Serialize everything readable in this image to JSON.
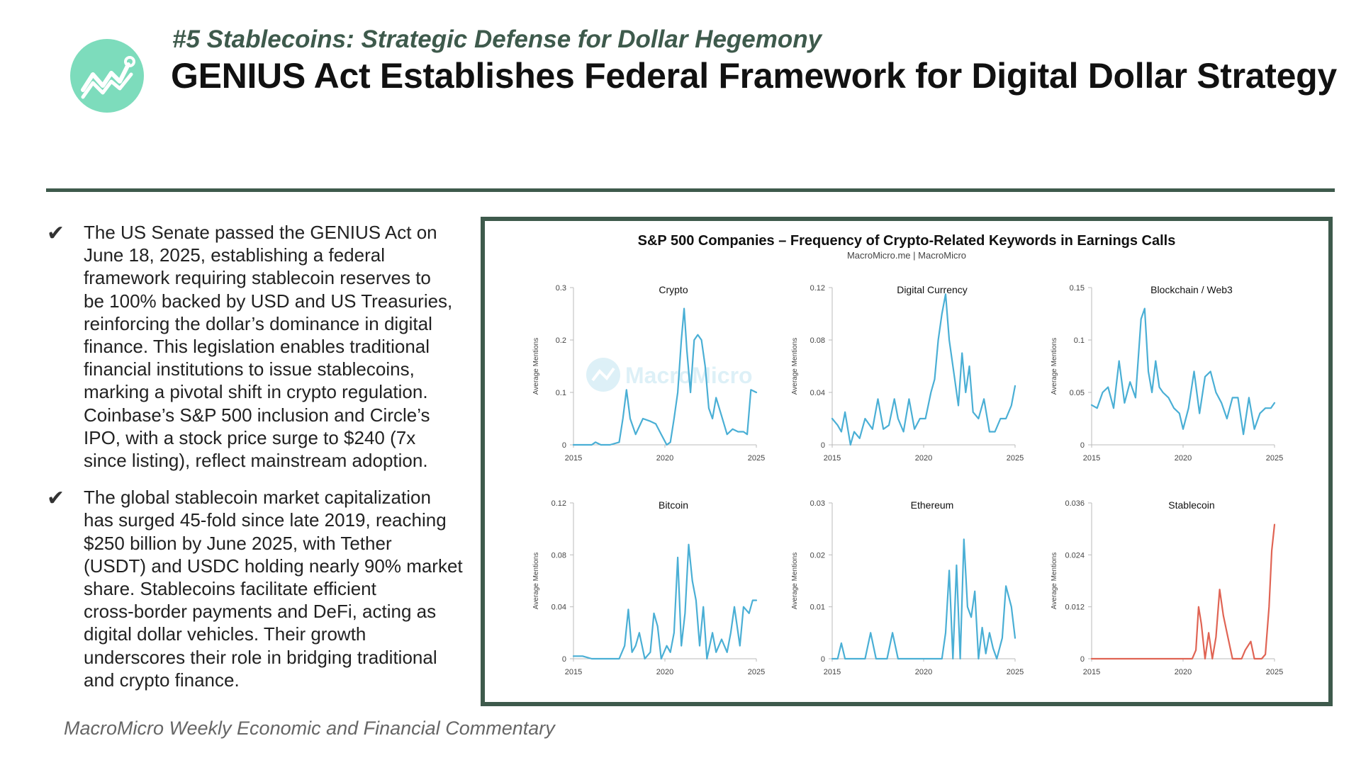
{
  "header": {
    "subtitle": "#5 Stablecoins: Strategic Defense for Dollar Hegemony",
    "title": "GENIUS Act Establishes Federal Framework for Digital Dollar Strategy",
    "logo_icon": "trend-chart-icon",
    "accent_color": "#7ddcbc",
    "rule_color": "#3e5a4c"
  },
  "bullets": [
    {
      "icon": "checkmark-icon",
      "lines": [
        "The US Senate passed the GENIUS Act on",
        "June 18, 2025, establishing a federal",
        "framework requiring stablecoin reserves to",
        "be 100% backed by USD and US Treasuries,",
        "reinforcing the dollar’s dominance in digital",
        "finance. This legislation enables traditional",
        "financial institutions to issue stablecoins,",
        "marking a pivotal shift in crypto regulation.",
        "Coinbase’s S&P 500 inclusion and Circle’s",
        "IPO, with a stock price surge to $240 (7x",
        "since listing), reflect mainstream adoption."
      ]
    },
    {
      "icon": "checkmark-icon",
      "lines": [
        "The global stablecoin market capitalization",
        "has surged 45-fold since late 2019, reaching",
        "$250 billion by June 2025, with Tether",
        "(USDT) and USDC holding nearly 90% market",
        "share. Stablecoins facilitate efficient",
        "cross-border payments and DeFi, acting as",
        "digital dollar vehicles. Their growth",
        "underscores their role in bridging traditional",
        "and crypto finance."
      ]
    }
  ],
  "footer": {
    "text": "MacroMicro Weekly Economic and Financial Commentary"
  },
  "chart_meta": {
    "title": "S&P 500 Companies – Frequency of Crypto-Related Keywords in Earnings Calls",
    "source": "MacroMicro.me | MacroMicro",
    "watermark": "MacroMicro",
    "watermark_icon": "macromicro-logo-icon"
  },
  "chart_data": [
    {
      "type": "line",
      "title": "Crypto",
      "ylabel": "Average Mentions",
      "xlim": [
        2015,
        2025
      ],
      "ylim": [
        0,
        0.3
      ],
      "y_ticks": [
        0,
        0.1,
        0.2,
        0.3
      ],
      "y_tick_labels": [
        "0",
        "0.1",
        "0.2",
        "0.3"
      ],
      "x_ticks": [
        2015,
        2020,
        2025
      ],
      "color": "#4aafd5",
      "x": [
        2015.0,
        2015.5,
        2016.0,
        2016.2,
        2016.5,
        2017.0,
        2017.5,
        2017.7,
        2017.9,
        2018.1,
        2018.4,
        2018.8,
        2019.2,
        2019.5,
        2019.8,
        2020.1,
        2020.3,
        2020.5,
        2020.7,
        2020.9,
        2021.05,
        2021.2,
        2021.4,
        2021.6,
        2021.8,
        2022.0,
        2022.2,
        2022.4,
        2022.6,
        2022.8,
        2023.1,
        2023.4,
        2023.7,
        2024.0,
        2024.3,
        2024.5,
        2024.7,
        2025.0
      ],
      "y": [
        0,
        0,
        0,
        0.005,
        0,
        0,
        0.005,
        0.05,
        0.105,
        0.05,
        0.02,
        0.05,
        0.045,
        0.04,
        0.02,
        0,
        0.005,
        0.05,
        0.1,
        0.2,
        0.26,
        0.18,
        0.1,
        0.2,
        0.21,
        0.2,
        0.15,
        0.07,
        0.05,
        0.09,
        0.055,
        0.02,
        0.03,
        0.025,
        0.025,
        0.02,
        0.105,
        0.1
      ]
    },
    {
      "type": "line",
      "title": "Digital Currency",
      "ylabel": "Average Mentions",
      "xlim": [
        2015,
        2025
      ],
      "ylim": [
        0,
        0.12
      ],
      "y_ticks": [
        0,
        0.04,
        0.08,
        0.12
      ],
      "y_tick_labels": [
        "0",
        "0.04",
        "0.08",
        "0.12"
      ],
      "x_ticks": [
        2015,
        2020,
        2025
      ],
      "color": "#4aafd5",
      "x": [
        2015.0,
        2015.3,
        2015.5,
        2015.7,
        2016.0,
        2016.2,
        2016.5,
        2016.8,
        2017.2,
        2017.5,
        2017.8,
        2018.1,
        2018.4,
        2018.6,
        2018.9,
        2019.2,
        2019.5,
        2019.8,
        2020.1,
        2020.4,
        2020.6,
        2020.8,
        2021.0,
        2021.2,
        2021.4,
        2021.7,
        2021.9,
        2022.1,
        2022.3,
        2022.5,
        2022.7,
        2023.0,
        2023.3,
        2023.6,
        2023.9,
        2024.2,
        2024.5,
        2024.8,
        2025.0
      ],
      "y": [
        0.02,
        0.015,
        0.01,
        0.025,
        0.0,
        0.01,
        0.005,
        0.02,
        0.012,
        0.035,
        0.012,
        0.015,
        0.035,
        0.02,
        0.01,
        0.035,
        0.012,
        0.02,
        0.02,
        0.04,
        0.05,
        0.08,
        0.1,
        0.115,
        0.08,
        0.05,
        0.03,
        0.07,
        0.04,
        0.06,
        0.025,
        0.02,
        0.035,
        0.01,
        0.01,
        0.02,
        0.02,
        0.03,
        0.045
      ]
    },
    {
      "type": "line",
      "title": "Blockchain / Web3",
      "ylabel": "Average Mentions",
      "xlim": [
        2015,
        2025
      ],
      "ylim": [
        0,
        0.15
      ],
      "y_ticks": [
        0,
        0.05,
        0.1,
        0.15
      ],
      "y_tick_labels": [
        "0",
        "0.05",
        "0.1",
        "0.15"
      ],
      "x_ticks": [
        2015,
        2020,
        2025
      ],
      "color": "#4aafd5",
      "x": [
        2015.0,
        2015.3,
        2015.6,
        2015.9,
        2016.2,
        2016.5,
        2016.8,
        2017.1,
        2017.4,
        2017.7,
        2017.9,
        2018.1,
        2018.3,
        2018.5,
        2018.7,
        2018.9,
        2019.2,
        2019.5,
        2019.8,
        2020.0,
        2020.3,
        2020.6,
        2020.9,
        2021.2,
        2021.5,
        2021.8,
        2022.1,
        2022.4,
        2022.7,
        2023.0,
        2023.3,
        2023.6,
        2023.9,
        2024.2,
        2024.5,
        2024.8,
        2025.0
      ],
      "y": [
        0.038,
        0.035,
        0.05,
        0.055,
        0.035,
        0.08,
        0.04,
        0.06,
        0.045,
        0.12,
        0.13,
        0.07,
        0.05,
        0.08,
        0.055,
        0.05,
        0.045,
        0.035,
        0.03,
        0.015,
        0.035,
        0.07,
        0.03,
        0.065,
        0.07,
        0.05,
        0.04,
        0.025,
        0.045,
        0.045,
        0.01,
        0.045,
        0.015,
        0.03,
        0.035,
        0.035,
        0.04
      ]
    },
    {
      "type": "line",
      "title": "Bitcoin",
      "ylabel": "Average Mentions",
      "xlim": [
        2015,
        2025
      ],
      "ylim": [
        0,
        0.12
      ],
      "y_ticks": [
        0,
        0.04,
        0.08,
        0.12
      ],
      "y_tick_labels": [
        "0",
        "0.04",
        "0.08",
        "0.12"
      ],
      "x_ticks": [
        2015,
        2020,
        2025
      ],
      "color": "#4aafd5",
      "x": [
        2015.0,
        2015.5,
        2016.0,
        2016.5,
        2017.0,
        2017.5,
        2017.8,
        2018.0,
        2018.2,
        2018.4,
        2018.6,
        2018.9,
        2019.2,
        2019.4,
        2019.6,
        2019.8,
        2020.1,
        2020.3,
        2020.5,
        2020.7,
        2020.9,
        2021.1,
        2021.3,
        2021.5,
        2021.7,
        2021.9,
        2022.1,
        2022.3,
        2022.6,
        2022.8,
        2023.1,
        2023.4,
        2023.6,
        2023.8,
        2024.1,
        2024.3,
        2024.6,
        2024.8,
        2025.0
      ],
      "y": [
        0.002,
        0.002,
        0.0,
        0.0,
        0.0,
        0.0,
        0.01,
        0.038,
        0.005,
        0.01,
        0.02,
        0.0,
        0.005,
        0.035,
        0.025,
        0.0,
        0.01,
        0.005,
        0.02,
        0.078,
        0.01,
        0.035,
        0.088,
        0.06,
        0.045,
        0.01,
        0.04,
        0.0,
        0.02,
        0.005,
        0.015,
        0.005,
        0.02,
        0.04,
        0.01,
        0.04,
        0.035,
        0.045,
        0.045
      ]
    },
    {
      "type": "line",
      "title": "Ethereum",
      "ylabel": "Average Mentions",
      "xlim": [
        2015,
        2025
      ],
      "ylim": [
        0,
        0.03
      ],
      "y_ticks": [
        0,
        0.01,
        0.02,
        0.03
      ],
      "y_tick_labels": [
        "0",
        "0.01",
        "0.02",
        "0.03"
      ],
      "x_ticks": [
        2015,
        2020,
        2025
      ],
      "color": "#4aafd5",
      "x": [
        2015.0,
        2015.3,
        2015.5,
        2015.7,
        2016.0,
        2016.5,
        2016.8,
        2017.1,
        2017.4,
        2017.7,
        2018.0,
        2018.3,
        2018.6,
        2018.9,
        2019.3,
        2019.6,
        2019.9,
        2020.2,
        2020.5,
        2020.8,
        2021.0,
        2021.2,
        2021.4,
        2021.6,
        2021.8,
        2022.0,
        2022.2,
        2022.4,
        2022.6,
        2022.8,
        2023.0,
        2023.2,
        2023.4,
        2023.6,
        2023.8,
        2024.0,
        2024.3,
        2024.5,
        2024.8,
        2025.0
      ],
      "y": [
        0.0,
        0.0,
        0.003,
        0.0,
        0.0,
        0.0,
        0.0,
        0.005,
        0.0,
        0.0,
        0.0,
        0.005,
        0.0,
        0.0,
        0.0,
        0.0,
        0.0,
        0.0,
        0.0,
        0.0,
        0.0,
        0.005,
        0.017,
        0.0,
        0.018,
        0.0,
        0.023,
        0.01,
        0.008,
        0.013,
        0.0,
        0.006,
        0.001,
        0.005,
        0.002,
        0.0,
        0.004,
        0.014,
        0.01,
        0.004
      ]
    },
    {
      "type": "line",
      "title": "Stablecoin",
      "ylabel": "Average Mentions",
      "xlim": [
        2015,
        2025
      ],
      "ylim": [
        0,
        0.036
      ],
      "y_ticks": [
        0,
        0.012,
        0.024,
        0.036
      ],
      "y_tick_labels": [
        "0",
        "0.012",
        "0.024",
        "0.036"
      ],
      "x_ticks": [
        2015,
        2020,
        2025
      ],
      "color": "#e06454",
      "x": [
        2015.0,
        2016.0,
        2017.0,
        2018.0,
        2019.0,
        2020.0,
        2020.5,
        2020.7,
        2020.85,
        2021.0,
        2021.2,
        2021.4,
        2021.6,
        2021.8,
        2022.0,
        2022.2,
        2022.4,
        2022.7,
        2023.0,
        2023.2,
        2023.4,
        2023.7,
        2023.9,
        2024.1,
        2024.3,
        2024.5,
        2024.7,
        2024.85,
        2025.0
      ],
      "y": [
        0,
        0,
        0,
        0,
        0,
        0,
        0,
        0.002,
        0.012,
        0.008,
        0.0,
        0.006,
        0.0,
        0.005,
        0.016,
        0.01,
        0.006,
        0.0,
        0.0,
        0.0,
        0.002,
        0.004,
        0.0,
        0.0,
        0.0,
        0.001,
        0.012,
        0.025,
        0.031
      ]
    }
  ]
}
